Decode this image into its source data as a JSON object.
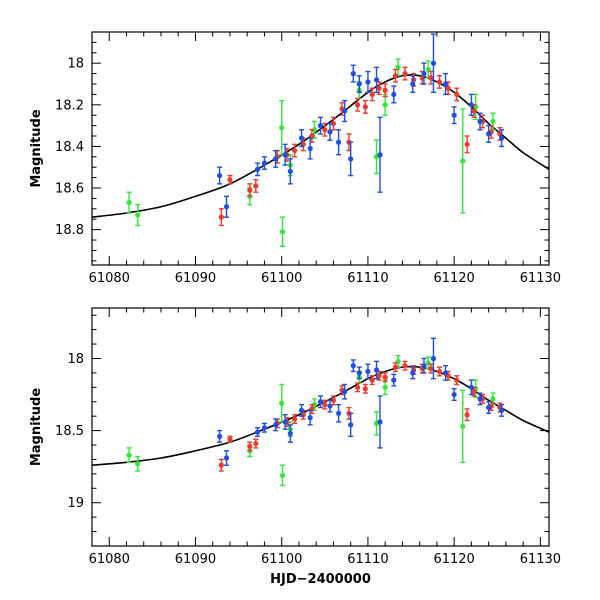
{
  "chart_data": [
    {
      "type": "scatter",
      "panel": "top",
      "xlabel": "",
      "ylabel": "Magnitude",
      "xlim": [
        61078,
        61131
      ],
      "ylim": [
        18.97,
        17.85
      ],
      "y_inverted": true,
      "xticks": [
        61080,
        61090,
        61100,
        61110,
        61120,
        61130
      ],
      "xtick_labels": [
        "61080",
        "61090",
        "61100",
        "61110",
        "61120",
        "61130"
      ],
      "yticks": [
        18.0,
        18.2,
        18.4,
        18.6,
        18.8
      ],
      "ytick_labels": [
        "18",
        "18.2",
        "18.4",
        "18.6",
        "18.8"
      ],
      "model_curve": {
        "x": [
          61078,
          61082,
          61086,
          61090,
          61094,
          61098,
          61102,
          61106,
          61110,
          61112,
          61114,
          61116,
          61118,
          61120,
          61122,
          61124,
          61126,
          61128,
          61131
        ],
        "y": [
          18.74,
          18.72,
          18.69,
          18.64,
          18.58,
          18.49,
          18.39,
          18.27,
          18.14,
          18.09,
          18.06,
          18.06,
          18.09,
          18.14,
          18.21,
          18.29,
          18.36,
          18.43,
          18.51
        ]
      },
      "series": [
        {
          "name": "blue",
          "color": "#1f4fe0",
          "points": [
            [
              61092.8,
              18.54,
              0.04
            ],
            [
              61093.6,
              18.69,
              0.05
            ],
            [
              61097.2,
              18.51,
              0.03
            ],
            [
              61098.0,
              18.48,
              0.03
            ],
            [
              61099.3,
              18.46,
              0.04
            ],
            [
              61100.4,
              18.44,
              0.05
            ],
            [
              61101.0,
              18.52,
              0.06
            ],
            [
              61102.3,
              18.36,
              0.04
            ],
            [
              61103.3,
              18.41,
              0.05
            ],
            [
              61104.5,
              18.3,
              0.04
            ],
            [
              61105.6,
              18.33,
              0.04
            ],
            [
              61106.6,
              18.38,
              0.06
            ],
            [
              61107.3,
              18.23,
              0.05
            ],
            [
              61108.0,
              18.46,
              0.08
            ],
            [
              61108.3,
              18.05,
              0.04
            ],
            [
              61109.0,
              18.1,
              0.04
            ],
            [
              61110.0,
              18.09,
              0.05
            ],
            [
              61111.0,
              18.08,
              0.06
            ],
            [
              61111.4,
              18.44,
              0.18
            ],
            [
              61113.0,
              18.15,
              0.04
            ],
            [
              61115.2,
              18.1,
              0.04
            ],
            [
              61116.5,
              18.05,
              0.05
            ],
            [
              61117.6,
              18.0,
              0.14
            ],
            [
              61119.0,
              18.1,
              0.05
            ],
            [
              61120.0,
              18.25,
              0.04
            ],
            [
              61122.0,
              18.2,
              0.05
            ],
            [
              61123.0,
              18.28,
              0.04
            ],
            [
              61124.0,
              18.34,
              0.04
            ],
            [
              61125.5,
              18.36,
              0.04
            ]
          ]
        },
        {
          "name": "red",
          "color": "#ec3a2b",
          "points": [
            [
              61093.0,
              18.74,
              0.04
            ],
            [
              61094.0,
              18.56,
              0.02
            ],
            [
              61096.3,
              18.61,
              0.03
            ],
            [
              61097.0,
              18.59,
              0.03
            ],
            [
              61099.5,
              18.45,
              0.03
            ],
            [
              61100.6,
              18.44,
              0.03
            ],
            [
              61101.5,
              18.42,
              0.03
            ],
            [
              61102.5,
              18.39,
              0.03
            ],
            [
              61103.5,
              18.35,
              0.03
            ],
            [
              61105.0,
              18.32,
              0.03
            ],
            [
              61106.0,
              18.29,
              0.03
            ],
            [
              61107.0,
              18.22,
              0.03
            ],
            [
              61107.8,
              18.38,
              0.04
            ],
            [
              61108.8,
              18.2,
              0.03
            ],
            [
              61109.7,
              18.21,
              0.03
            ],
            [
              61110.5,
              18.15,
              0.03
            ],
            [
              61111.3,
              18.12,
              0.03
            ],
            [
              61112.0,
              18.13,
              0.03
            ],
            [
              61113.2,
              18.06,
              0.03
            ],
            [
              61114.3,
              18.05,
              0.03
            ],
            [
              61115.3,
              18.08,
              0.03
            ],
            [
              61116.3,
              18.07,
              0.03
            ],
            [
              61117.3,
              18.07,
              0.03
            ],
            [
              61118.3,
              18.09,
              0.03
            ],
            [
              61119.3,
              18.12,
              0.03
            ],
            [
              61120.3,
              18.15,
              0.03
            ],
            [
              61121.5,
              18.39,
              0.04
            ],
            [
              61122.3,
              18.23,
              0.03
            ],
            [
              61123.3,
              18.28,
              0.03
            ],
            [
              61124.3,
              18.33,
              0.03
            ],
            [
              61125.3,
              18.34,
              0.03
            ]
          ]
        },
        {
          "name": "green",
          "color": "#33e63a",
          "points": [
            [
              61082.3,
              18.67,
              0.05
            ],
            [
              61083.3,
              18.73,
              0.05
            ],
            [
              61096.3,
              18.64,
              0.04
            ],
            [
              61100.0,
              18.31,
              0.13
            ],
            [
              61100.1,
              18.81,
              0.07
            ],
            [
              61101.0,
              18.49,
              0.05
            ],
            [
              61103.8,
              18.32,
              0.04
            ],
            [
              61109.0,
              18.13,
              0.04
            ],
            [
              61111.0,
              18.45,
              0.08
            ],
            [
              61112.0,
              18.2,
              0.05
            ],
            [
              61113.5,
              18.02,
              0.04
            ],
            [
              61117.0,
              18.03,
              0.04
            ],
            [
              61121.0,
              18.47,
              0.25
            ],
            [
              61122.5,
              18.21,
              0.06
            ],
            [
              61124.5,
              18.28,
              0.04
            ]
          ]
        }
      ]
    },
    {
      "type": "scatter",
      "panel": "bottom",
      "xlabel": "HJD−2400000",
      "ylabel": "Magnitude",
      "xlim": [
        61078,
        61131
      ],
      "ylim": [
        19.3,
        17.65
      ],
      "y_inverted": true,
      "xticks": [
        61080,
        61090,
        61100,
        61110,
        61120,
        61130
      ],
      "xtick_labels": [
        "61080",
        "61090",
        "61100",
        "61110",
        "61120",
        "61130"
      ],
      "yticks": [
        18.0,
        18.5,
        19.0
      ],
      "ytick_labels": [
        "18",
        "18.5",
        "19"
      ],
      "model_curve": {
        "x": [
          61078,
          61082,
          61086,
          61090,
          61094,
          61098,
          61102,
          61106,
          61110,
          61112,
          61114,
          61116,
          61118,
          61120,
          61122,
          61124,
          61126,
          61128,
          61131
        ],
        "y": [
          18.74,
          18.72,
          18.69,
          18.64,
          18.58,
          18.49,
          18.39,
          18.27,
          18.14,
          18.09,
          18.06,
          18.06,
          18.09,
          18.14,
          18.21,
          18.29,
          18.36,
          18.43,
          18.51
        ]
      },
      "series": [
        {
          "name": "blue",
          "color": "#1f4fe0",
          "points": [
            [
              61092.8,
              18.54,
              0.04
            ],
            [
              61093.6,
              18.69,
              0.05
            ],
            [
              61097.2,
              18.51,
              0.03
            ],
            [
              61098.0,
              18.48,
              0.03
            ],
            [
              61099.3,
              18.46,
              0.04
            ],
            [
              61100.4,
              18.44,
              0.05
            ],
            [
              61101.0,
              18.52,
              0.06
            ],
            [
              61102.3,
              18.36,
              0.04
            ],
            [
              61103.3,
              18.41,
              0.05
            ],
            [
              61104.5,
              18.3,
              0.04
            ],
            [
              61105.6,
              18.33,
              0.04
            ],
            [
              61106.6,
              18.38,
              0.06
            ],
            [
              61107.3,
              18.23,
              0.05
            ],
            [
              61108.0,
              18.46,
              0.08
            ],
            [
              61108.3,
              18.05,
              0.04
            ],
            [
              61109.0,
              18.1,
              0.04
            ],
            [
              61110.0,
              18.09,
              0.05
            ],
            [
              61111.0,
              18.08,
              0.06
            ],
            [
              61111.4,
              18.44,
              0.18
            ],
            [
              61113.0,
              18.15,
              0.04
            ],
            [
              61115.2,
              18.1,
              0.04
            ],
            [
              61116.5,
              18.05,
              0.05
            ],
            [
              61117.6,
              18.0,
              0.14
            ],
            [
              61119.0,
              18.1,
              0.05
            ],
            [
              61120.0,
              18.25,
              0.04
            ],
            [
              61122.0,
              18.2,
              0.05
            ],
            [
              61123.0,
              18.28,
              0.04
            ],
            [
              61124.0,
              18.34,
              0.04
            ],
            [
              61125.5,
              18.36,
              0.04
            ]
          ]
        },
        {
          "name": "red",
          "color": "#ec3a2b",
          "points": [
            [
              61093.0,
              18.74,
              0.04
            ],
            [
              61094.0,
              18.56,
              0.02
            ],
            [
              61096.3,
              18.61,
              0.03
            ],
            [
              61097.0,
              18.59,
              0.03
            ],
            [
              61099.5,
              18.45,
              0.03
            ],
            [
              61100.6,
              18.44,
              0.03
            ],
            [
              61101.5,
              18.42,
              0.03
            ],
            [
              61102.5,
              18.39,
              0.03
            ],
            [
              61103.5,
              18.35,
              0.03
            ],
            [
              61105.0,
              18.32,
              0.03
            ],
            [
              61106.0,
              18.29,
              0.03
            ],
            [
              61107.0,
              18.22,
              0.03
            ],
            [
              61107.8,
              18.38,
              0.04
            ],
            [
              61108.8,
              18.2,
              0.03
            ],
            [
              61109.7,
              18.21,
              0.03
            ],
            [
              61110.5,
              18.15,
              0.03
            ],
            [
              61111.3,
              18.12,
              0.03
            ],
            [
              61112.0,
              18.13,
              0.03
            ],
            [
              61113.2,
              18.06,
              0.03
            ],
            [
              61114.3,
              18.05,
              0.03
            ],
            [
              61115.3,
              18.08,
              0.03
            ],
            [
              61116.3,
              18.07,
              0.03
            ],
            [
              61117.3,
              18.07,
              0.03
            ],
            [
              61118.3,
              18.09,
              0.03
            ],
            [
              61119.3,
              18.12,
              0.03
            ],
            [
              61120.3,
              18.15,
              0.03
            ],
            [
              61121.5,
              18.39,
              0.04
            ],
            [
              61122.3,
              18.23,
              0.03
            ],
            [
              61123.3,
              18.28,
              0.03
            ],
            [
              61124.3,
              18.33,
              0.03
            ],
            [
              61125.3,
              18.34,
              0.03
            ]
          ]
        },
        {
          "name": "green",
          "color": "#33e63a",
          "points": [
            [
              61082.3,
              18.67,
              0.05
            ],
            [
              61083.3,
              18.73,
              0.05
            ],
            [
              61096.3,
              18.64,
              0.04
            ],
            [
              61100.0,
              18.31,
              0.13
            ],
            [
              61100.1,
              18.81,
              0.07
            ],
            [
              61101.0,
              18.49,
              0.05
            ],
            [
              61103.8,
              18.32,
              0.04
            ],
            [
              61109.0,
              18.13,
              0.04
            ],
            [
              61111.0,
              18.45,
              0.08
            ],
            [
              61112.0,
              18.2,
              0.05
            ],
            [
              61113.5,
              18.02,
              0.04
            ],
            [
              61117.0,
              18.03,
              0.04
            ],
            [
              61121.0,
              18.47,
              0.25
            ],
            [
              61122.5,
              18.21,
              0.06
            ],
            [
              61124.5,
              18.28,
              0.04
            ]
          ]
        }
      ]
    }
  ]
}
